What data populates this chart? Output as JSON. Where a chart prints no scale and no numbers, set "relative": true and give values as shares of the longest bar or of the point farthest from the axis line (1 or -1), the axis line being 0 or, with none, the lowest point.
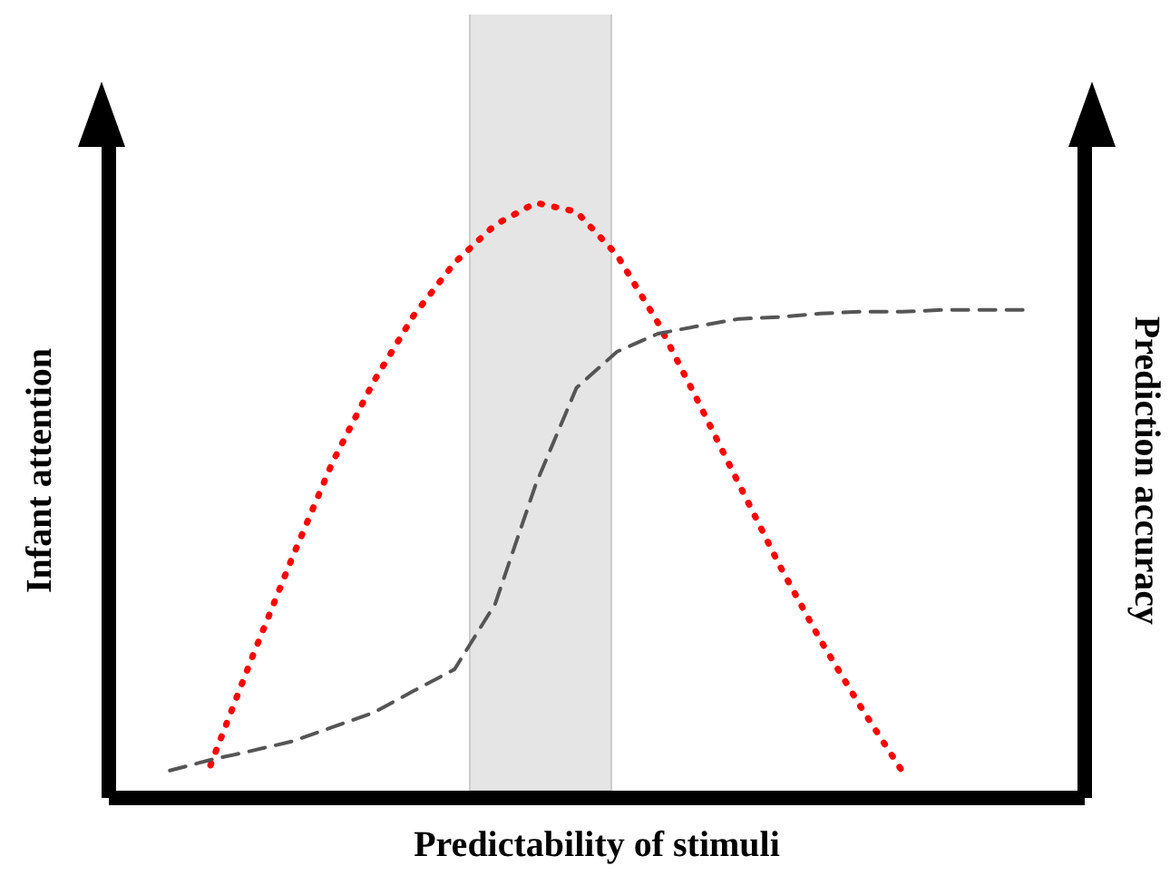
{
  "chart_data": {
    "type": "line",
    "xlabel": "Predictability of stimuli",
    "ylabel": "Infant attention",
    "y2label": "Prediction accuracy",
    "relative": true,
    "marker": "none",
    "categories": [
      null,
      null,
      null,
      null,
      null,
      null,
      null,
      null,
      null,
      null,
      null,
      null,
      null,
      null,
      null,
      null,
      null,
      null,
      null,
      null,
      null,
      null
    ],
    "series": [
      {
        "color": "#ff0000",
        "line_style": "dotted",
        "values": [
          null,
          0.055,
          0.232,
          0.402,
          0.564,
          0.698,
          0.811,
          0.899,
          0.963,
          1,
          0.985,
          0.912,
          0.799,
          0.665,
          0.527,
          0.39,
          0.265,
          0.152,
          0.046,
          null,
          null,
          null
        ]
      },
      {
        "color": "#555555",
        "line_style": "dashed",
        "values": [
          0.046,
          0.064,
          0.079,
          0.095,
          0.119,
          0.143,
          0.18,
          0.216,
          0.326,
          0.527,
          0.689,
          0.75,
          0.78,
          0.793,
          0.805,
          0.808,
          0.814,
          0.817,
          0.817,
          0.82,
          0.82,
          0.82
        ]
      }
    ]
  }
}
